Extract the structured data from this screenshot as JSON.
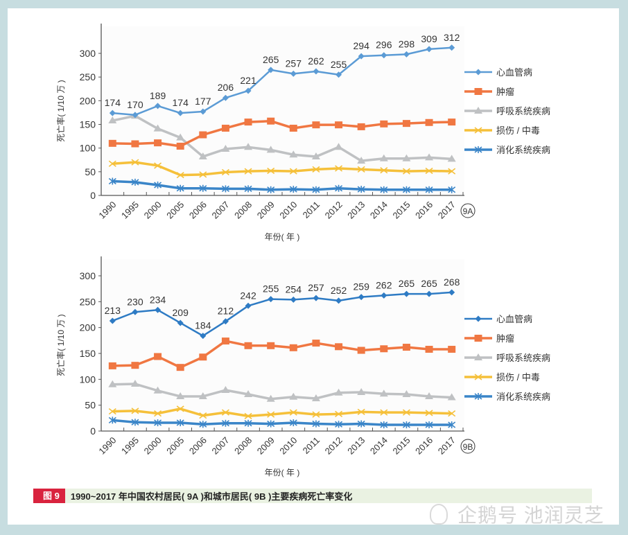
{
  "caption": {
    "badge": "图 9",
    "text": "1990~2017 年中国农村居民( 9A )和城市居民( 9B )主要疾病死亡率变化"
  },
  "watermark": "企鹅号 池润灵芝",
  "chart_data": [
    {
      "id": "9A",
      "type": "line",
      "title": "",
      "panel_label": "9A",
      "xlabel": "年份( 年 )",
      "ylabel": "死亡率( 1/10 万 )",
      "ylim": [
        0,
        340
      ],
      "yticks": [
        0,
        50,
        100,
        150,
        200,
        250,
        300
      ],
      "grid": false,
      "legend": "right",
      "categories": [
        "1990",
        "1995",
        "2000",
        "2005",
        "2006",
        "2007",
        "2008",
        "2009",
        "2010",
        "2011",
        "2012",
        "2013",
        "2014",
        "2015",
        "2016",
        "2017"
      ],
      "series": [
        {
          "name": "心血管病",
          "color": "#5b9bd5",
          "marker": "diamond",
          "labeled": true,
          "values": [
            174,
            170,
            189,
            174,
            177,
            206,
            221,
            265,
            257,
            262,
            255,
            294,
            296,
            298,
            309,
            312
          ]
        },
        {
          "name": "肿瘤",
          "color": "#f07742",
          "marker": "square",
          "labeled": false,
          "values": [
            110,
            109,
            111,
            104,
            128,
            142,
            155,
            157,
            142,
            149,
            149,
            145,
            151,
            152,
            154,
            155
          ]
        },
        {
          "name": "呼吸系统疾病",
          "color": "#bfc1c3",
          "marker": "triangle",
          "labeled": false,
          "values": [
            158,
            168,
            141,
            122,
            82,
            98,
            102,
            96,
            86,
            82,
            102,
            73,
            78,
            78,
            80,
            77
          ]
        },
        {
          "name": "损伤 / 中毒",
          "color": "#f5c03a",
          "marker": "x",
          "labeled": false,
          "values": [
            67,
            70,
            63,
            43,
            44,
            49,
            51,
            52,
            51,
            55,
            57,
            55,
            53,
            51,
            52,
            51
          ]
        },
        {
          "name": "消化系统疾病",
          "color": "#3a85c8",
          "marker": "star",
          "labeled": false,
          "values": [
            30,
            28,
            22,
            15,
            15,
            14,
            14,
            12,
            13,
            12,
            15,
            13,
            12,
            12,
            12,
            12
          ]
        }
      ]
    },
    {
      "id": "9B",
      "type": "line",
      "title": "",
      "panel_label": "9B",
      "xlabel": "年份( 年 )",
      "ylabel": "死亡率( 1/10 万 )",
      "ylim": [
        0,
        330
      ],
      "yticks": [
        0,
        50,
        100,
        150,
        200,
        250,
        300
      ],
      "grid": false,
      "legend": "right",
      "categories": [
        "1990",
        "1995",
        "2000",
        "2005",
        "2006",
        "2007",
        "2008",
        "2009",
        "2010",
        "2011",
        "2012",
        "2013",
        "2014",
        "2015",
        "2016",
        "2017"
      ],
      "series": [
        {
          "name": "心血管病",
          "color": "#2e7bc4",
          "marker": "diamond",
          "labeled": true,
          "values": [
            213,
            230,
            234,
            209,
            184,
            212,
            242,
            255,
            254,
            257,
            252,
            259,
            262,
            265,
            265,
            268
          ]
        },
        {
          "name": "肿瘤",
          "color": "#f07742",
          "marker": "square",
          "labeled": false,
          "values": [
            126,
            127,
            144,
            123,
            143,
            174,
            165,
            165,
            161,
            170,
            163,
            156,
            159,
            162,
            158,
            158
          ]
        },
        {
          "name": "呼吸系统疾病",
          "color": "#bfc1c3",
          "marker": "triangle",
          "labeled": false,
          "values": [
            90,
            91,
            78,
            67,
            67,
            79,
            71,
            62,
            66,
            63,
            74,
            75,
            72,
            71,
            67,
            65
          ]
        },
        {
          "name": "损伤 / 中毒",
          "color": "#f5c03a",
          "marker": "x",
          "labeled": false,
          "values": [
            38,
            39,
            34,
            43,
            30,
            36,
            29,
            32,
            36,
            32,
            33,
            37,
            36,
            36,
            35,
            34
          ]
        },
        {
          "name": "消化系统疾病",
          "color": "#3a85c8",
          "marker": "star",
          "labeled": false,
          "values": [
            21,
            17,
            16,
            16,
            13,
            15,
            15,
            14,
            16,
            14,
            13,
            14,
            12,
            12,
            12,
            12
          ]
        }
      ]
    }
  ]
}
